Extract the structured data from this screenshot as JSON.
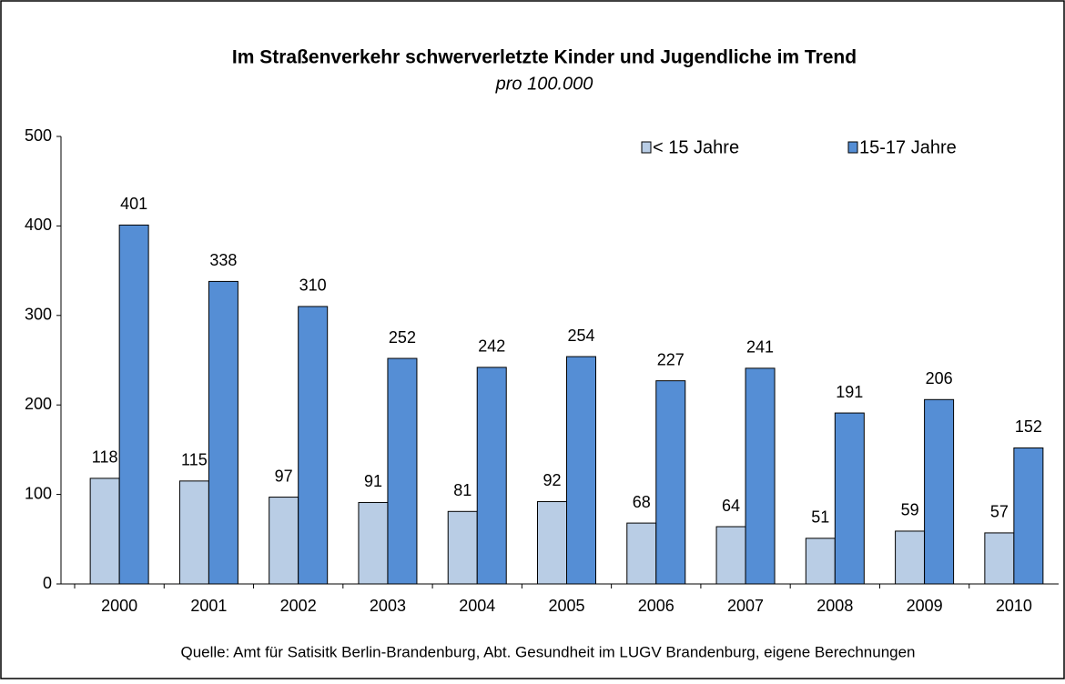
{
  "chart_data": {
    "type": "bar",
    "title": "Im Straßenverkehr  schwerverletzte  Kinder und Jugendliche im Trend",
    "subtitle": "pro 100.000",
    "source": "Quelle: Amt für Satisitk Berlin-Brandenburg, Abt. Gesundheit im LUGV Brandenburg, eigene Berechnungen",
    "categories": [
      "2000",
      "2001",
      "2002",
      "2003",
      "2004",
      "2005",
      "2006",
      "2007",
      "2008",
      "2009",
      "2010"
    ],
    "series": [
      {
        "name": "< 15 Jahre",
        "color": "#b9cde5",
        "values": [
          118,
          115,
          97,
          91,
          81,
          92,
          68,
          64,
          51,
          59,
          57
        ]
      },
      {
        "name": "15-17 Jahre",
        "color": "#558ed5",
        "values": [
          401,
          338,
          310,
          252,
          242,
          254,
          227,
          241,
          191,
          206,
          152
        ]
      }
    ],
    "ylim": [
      0,
      500
    ],
    "yticks": [
      0,
      100,
      200,
      300,
      400,
      500
    ],
    "grid": false,
    "legend": "top-right"
  }
}
